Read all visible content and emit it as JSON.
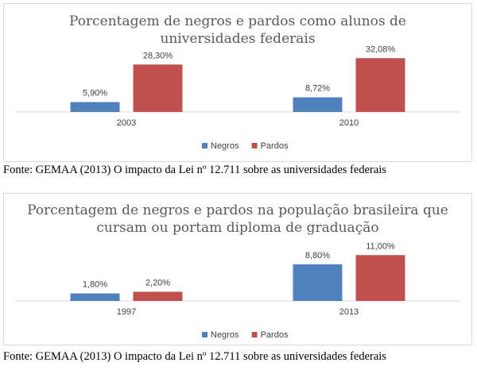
{
  "chart_data": [
    {
      "type": "bar",
      "title_lines": [
        "Porcentagem de negros e pardos como alunos de",
        "universidades federais"
      ],
      "categories": [
        "2003",
        "2010"
      ],
      "series": [
        {
          "name": "Negros",
          "values": [
            5.9,
            8.72
          ],
          "labels": [
            "5,90%",
            "8,72%"
          ],
          "color": "#4f81bd"
        },
        {
          "name": "Pardos",
          "values": [
            28.3,
            32.08
          ],
          "labels": [
            "28,30%",
            "32,08%"
          ],
          "color": "#c0504d"
        }
      ],
      "ylim": [
        0,
        36
      ],
      "grid": false,
      "legend": "bottom"
    },
    {
      "type": "bar",
      "title_lines": [
        "Porcentagem de negros e pardos na população brasileira que",
        "cursam ou portam diploma de graduação"
      ],
      "categories": [
        "1997",
        "2013"
      ],
      "series": [
        {
          "name": "Negros",
          "values": [
            1.8,
            8.8
          ],
          "labels": [
            "1,80%",
            "8,80%"
          ],
          "color": "#4f81bd"
        },
        {
          "name": "Pardos",
          "values": [
            2.2,
            11.0
          ],
          "labels": [
            "2,20%",
            "11,00%"
          ],
          "color": "#c0504d"
        }
      ],
      "ylim": [
        0,
        12
      ],
      "grid": false,
      "legend": "bottom"
    }
  ],
  "sources": [
    "Fonte: GEMAA (2013) O impacto da Lei nº 12.711 sobre as universidades federais",
    "Fonte: GEMAA (2013) O impacto da Lei nº 12.711 sobre as universidades federais"
  ]
}
